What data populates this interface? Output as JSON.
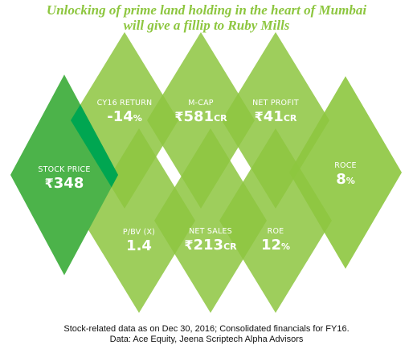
{
  "title": {
    "line1": "Unlocking of prime land holding in the heart of Mumbai",
    "line2": "will give a fillip to Ruby Mills"
  },
  "colors": {
    "title": "#8dc63f",
    "stock_price_diamond": "#4cb34a",
    "stat_diamond": "#8dc63f",
    "overlap": "#00a651",
    "text": "#ffffff"
  },
  "stats": {
    "stock_price": {
      "label": "STOCK PRICE",
      "currency": "₹",
      "value": "348",
      "unit": ""
    },
    "cy16_return": {
      "label": "CY16 RETURN",
      "currency": "",
      "value": "-14",
      "unit": "%"
    },
    "mcap": {
      "label": "M-CAP",
      "currency": "₹",
      "value": "581",
      "unit": "CR"
    },
    "net_profit": {
      "label": "NET PROFIT",
      "currency": "₹",
      "value": "41",
      "unit": "CR"
    },
    "roce": {
      "label": "ROCE",
      "currency": "",
      "value": "8",
      "unit": "%"
    },
    "pbv": {
      "label": "P/BV (X)",
      "currency": "",
      "value": "1.4",
      "unit": ""
    },
    "net_sales": {
      "label": "NET SALES",
      "currency": "₹",
      "value": "213",
      "unit": "CR"
    },
    "roe": {
      "label": "ROE",
      "currency": "",
      "value": "12",
      "unit": "%"
    }
  },
  "footer": {
    "line1": "Stock-related data as on Dec 30, 2016; Consolidated financials for FY16.",
    "line2": "Data: Ace Equity, Jeena Scriptech Alpha Advisors"
  }
}
